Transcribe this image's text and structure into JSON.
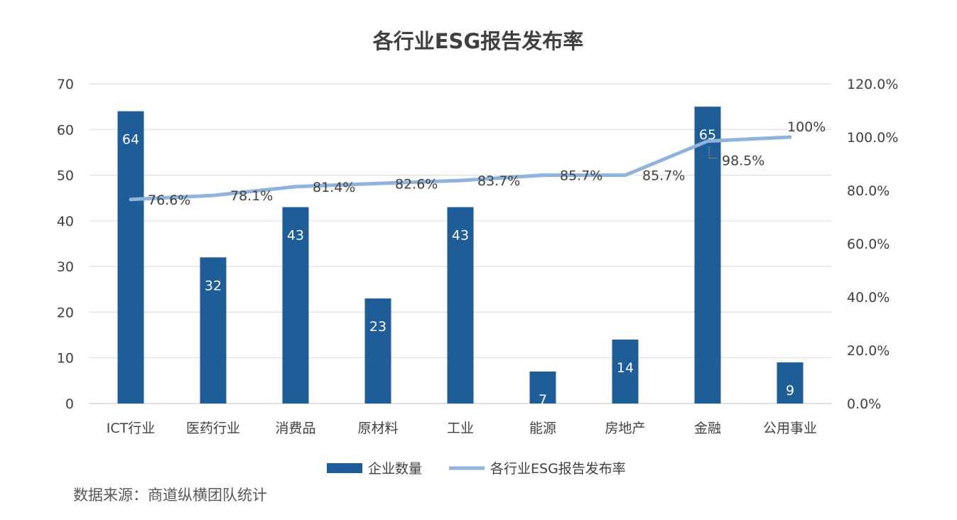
{
  "chart_data": {
    "type": "bar",
    "title": "各行业ESG报告发布率",
    "categories": [
      "ICT行业",
      "医药行业",
      "消费品",
      "原材料",
      "工业",
      "能源",
      "房地产",
      "金融",
      "公用事业"
    ],
    "series": [
      {
        "name": "企业数量",
        "type": "bar",
        "axis": "left",
        "values": [
          64,
          32,
          43,
          23,
          43,
          7,
          14,
          65,
          9
        ],
        "labels": [
          "64",
          "32",
          "43",
          "23",
          "43",
          "7",
          "14",
          "65",
          "9"
        ],
        "color": "#1f5d99"
      },
      {
        "name": "各行业ESG报告发布率",
        "type": "line",
        "axis": "right",
        "values": [
          76.6,
          78.1,
          81.4,
          82.6,
          83.7,
          85.7,
          85.7,
          98.5,
          100
        ],
        "labels": [
          "76.6%",
          "78.1%",
          "81.4%",
          "82.6%",
          "83.7%",
          "85.7%",
          "85.7%",
          "98.5%",
          "100%"
        ],
        "color": "#8fb3dc"
      }
    ],
    "y_left": {
      "min": 0,
      "max": 70,
      "ticks": [
        "0",
        "10",
        "20",
        "30",
        "40",
        "50",
        "60",
        "70"
      ]
    },
    "y_right": {
      "min": 0,
      "max": 120,
      "ticks": [
        "0.0%",
        "20.0%",
        "40.0%",
        "60.0%",
        "80.0%",
        "100.0%",
        "120.0%"
      ]
    },
    "grid": true,
    "legend_position": "bottom"
  },
  "source_note": "数据来源：商道纵横团队统计",
  "colors": {
    "bar": "#1f5d99",
    "line": "#8fb3dc",
    "grid": "#d9d9d9",
    "text": "#404040"
  }
}
